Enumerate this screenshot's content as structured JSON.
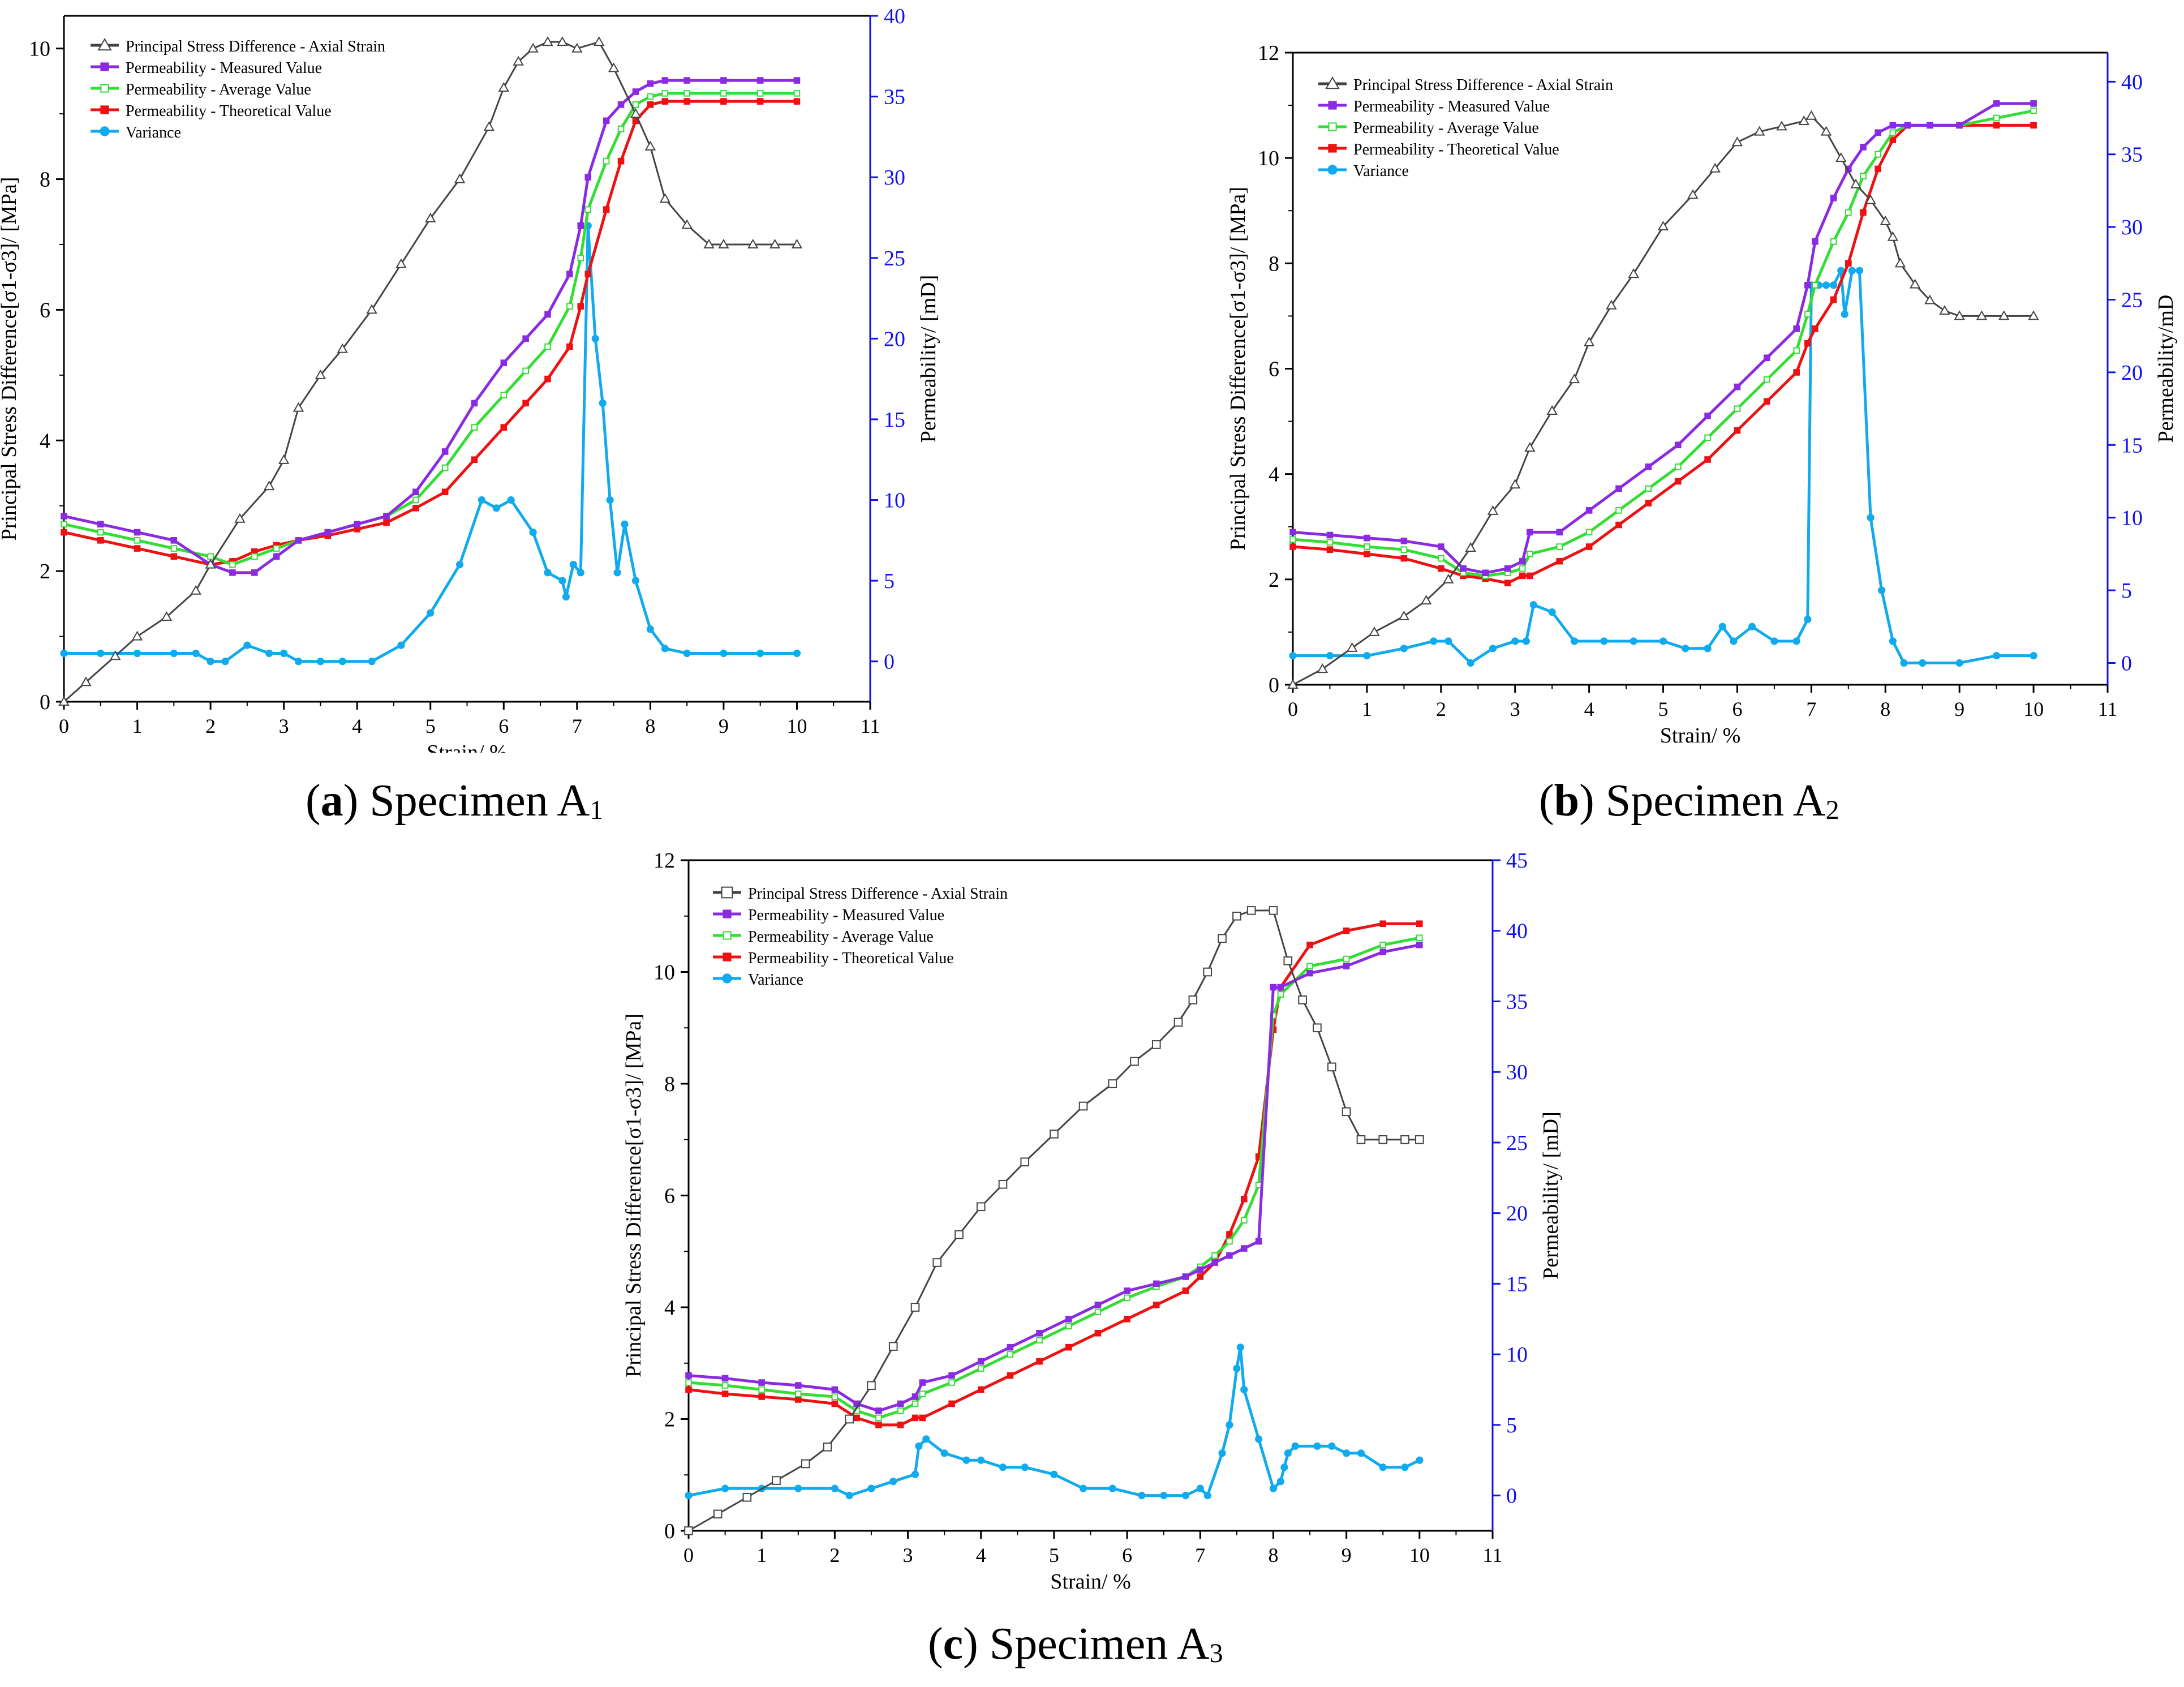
{
  "colors": {
    "stress": "#444444",
    "measured": "#8A2BE2",
    "average": "#33DD33",
    "theoretical": "#EE1111",
    "variance": "#11AAEE",
    "right_axis": "#1111EE"
  },
  "chart_data": [
    {
      "type": "line",
      "panel": "a",
      "caption": {
        "letter": "a",
        "text": "Specimen A",
        "sub": "1"
      },
      "xlabel": "Strain/ %",
      "ylabel": "Principal Stress Difference[σ1-σ3]/ [MPa]",
      "y2label": "Permeability/ [mD]",
      "xlim": [
        0,
        11
      ],
      "xticks": [
        0,
        1,
        2,
        3,
        4,
        5,
        6,
        7,
        8,
        9,
        10,
        11
      ],
      "ylim": [
        0,
        10.5
      ],
      "yticks": [
        0,
        2,
        4,
        6,
        8,
        10
      ],
      "y2lim": [
        -2.5,
        40
      ],
      "y2ticks": [
        0,
        5,
        10,
        15,
        20,
        25,
        30,
        35,
        40
      ],
      "legend": [
        "Principal Stress Difference - Axial Strain",
        "Permeability - Measured Value",
        "Permeability - Average Value",
        "Permeability - Theoretical Value",
        "Variance"
      ],
      "marker": "triangle",
      "stress": {
        "x": [
          0,
          0.3,
          0.7,
          1.0,
          1.4,
          1.8,
          2.0,
          2.4,
          2.8,
          3.0,
          3.2,
          3.5,
          3.8,
          4.2,
          4.6,
          5.0,
          5.4,
          5.8,
          6.0,
          6.2,
          6.4,
          6.6,
          6.8,
          7.0,
          7.3,
          7.5,
          7.8,
          8.0,
          8.2,
          8.5,
          8.8,
          9.0,
          9.4,
          9.7,
          10.0
        ],
        "y": [
          0,
          0.3,
          0.7,
          1.0,
          1.3,
          1.7,
          2.1,
          2.8,
          3.3,
          3.7,
          4.5,
          5.0,
          5.4,
          6.0,
          6.7,
          7.4,
          8.0,
          8.8,
          9.4,
          9.8,
          10.0,
          10.1,
          10.1,
          10.0,
          10.1,
          9.7,
          9.0,
          8.5,
          7.7,
          7.3,
          7.0,
          7.0,
          7.0,
          7.0,
          7.0
        ]
      },
      "measured": {
        "x": [
          0,
          0.5,
          1.0,
          1.5,
          2.0,
          2.3,
          2.6,
          2.9,
          3.2,
          3.6,
          4.0,
          4.4,
          4.8,
          5.2,
          5.6,
          6.0,
          6.3,
          6.6,
          6.9,
          7.05,
          7.15,
          7.4,
          7.6,
          7.8,
          8.0,
          8.2,
          8.5,
          9.0,
          9.5,
          10.0
        ],
        "y": [
          9.0,
          8.5,
          8.0,
          7.5,
          6.0,
          5.5,
          5.5,
          6.5,
          7.5,
          8.0,
          8.5,
          9.0,
          10.5,
          13.0,
          16.0,
          18.5,
          20.0,
          21.5,
          24.0,
          27.0,
          30.0,
          33.5,
          34.5,
          35.3,
          35.8,
          36.0,
          36.0,
          36.0,
          36.0,
          36.0
        ]
      },
      "average": {
        "x": [
          0,
          0.5,
          1.0,
          1.5,
          2.0,
          2.3,
          2.6,
          2.9,
          3.2,
          3.6,
          4.0,
          4.4,
          4.8,
          5.2,
          5.6,
          6.0,
          6.3,
          6.6,
          6.9,
          7.05,
          7.15,
          7.4,
          7.6,
          7.8,
          8.0,
          8.2,
          8.5,
          9.0,
          9.5,
          10.0
        ],
        "y": [
          8.5,
          8.0,
          7.5,
          7.0,
          6.5,
          6.0,
          6.5,
          7.0,
          7.5,
          8.0,
          8.5,
          9.0,
          10.0,
          12.0,
          14.5,
          16.5,
          18.0,
          19.5,
          22.0,
          25.0,
          28.0,
          31.0,
          33.0,
          34.5,
          35.0,
          35.2,
          35.2,
          35.2,
          35.2,
          35.2
        ]
      },
      "theoretical": {
        "x": [
          0,
          0.5,
          1.0,
          1.5,
          2.0,
          2.3,
          2.6,
          2.9,
          3.2,
          3.6,
          4.0,
          4.4,
          4.8,
          5.2,
          5.6,
          6.0,
          6.3,
          6.6,
          6.9,
          7.05,
          7.15,
          7.4,
          7.6,
          7.8,
          8.0,
          8.2,
          8.5,
          9.0,
          9.5,
          10.0
        ],
        "y": [
          8.0,
          7.5,
          7.0,
          6.5,
          6.0,
          6.2,
          6.8,
          7.2,
          7.5,
          7.8,
          8.2,
          8.6,
          9.5,
          10.5,
          12.5,
          14.5,
          16.0,
          17.5,
          19.5,
          22.0,
          24.0,
          28.0,
          31.0,
          33.5,
          34.5,
          34.7,
          34.7,
          34.7,
          34.7,
          34.7
        ]
      },
      "variance": {
        "x": [
          0,
          0.5,
          1.0,
          1.5,
          1.8,
          2.0,
          2.2,
          2.5,
          2.8,
          3.0,
          3.2,
          3.5,
          3.8,
          4.2,
          4.6,
          5.0,
          5.4,
          5.7,
          5.9,
          6.1,
          6.4,
          6.6,
          6.8,
          6.85,
          6.95,
          7.05,
          7.15,
          7.25,
          7.35,
          7.45,
          7.55,
          7.65,
          7.8,
          8.0,
          8.2,
          8.5,
          9.0,
          9.5,
          10.0
        ],
        "y": [
          0.5,
          0.5,
          0.5,
          0.5,
          0.5,
          0,
          0,
          1,
          0.5,
          0.5,
          0,
          0,
          0,
          0,
          1,
          3,
          6,
          10,
          9.5,
          10,
          8,
          5.5,
          5,
          4,
          6,
          5.5,
          27,
          20,
          16,
          10,
          5.5,
          8.5,
          5,
          2,
          0.8,
          0.5,
          0.5,
          0.5,
          0.5
        ]
      }
    },
    {
      "type": "line",
      "panel": "b",
      "caption": {
        "letter": "b",
        "text": "Specimen A",
        "sub": "2"
      },
      "xlabel": "Strain/ %",
      "ylabel": "Principal Stress Difference[σ1-σ3]/ [MPa]",
      "y2label": "Permeability/mD",
      "xlim": [
        0,
        11
      ],
      "xticks": [
        0,
        1,
        2,
        3,
        4,
        5,
        6,
        7,
        8,
        9,
        10,
        11
      ],
      "ylim": [
        0,
        12
      ],
      "yticks": [
        0,
        2,
        4,
        6,
        8,
        10,
        12
      ],
      "y2lim": [
        -1.5,
        42
      ],
      "y2ticks": [
        0,
        5,
        10,
        15,
        20,
        25,
        30,
        35,
        40
      ],
      "legend": [
        "Principal Stress Difference - Axial Strain",
        "Permeability - Measured Value",
        "Permeability - Average Value",
        "Permeability - Theoretical Value",
        "Variance"
      ],
      "marker": "triangle",
      "stress": {
        "x": [
          0,
          0.4,
          0.8,
          1.1,
          1.5,
          1.8,
          2.1,
          2.4,
          2.7,
          3.0,
          3.2,
          3.5,
          3.8,
          4.0,
          4.3,
          4.6,
          5.0,
          5.4,
          5.7,
          6.0,
          6.3,
          6.6,
          6.9,
          7.0,
          7.2,
          7.4,
          7.6,
          7.8,
          8.0,
          8.1,
          8.2,
          8.4,
          8.6,
          8.8,
          9.0,
          9.3,
          9.6,
          10.0
        ],
        "y": [
          0,
          0.3,
          0.7,
          1.0,
          1.3,
          1.6,
          2.0,
          2.6,
          3.3,
          3.8,
          4.5,
          5.2,
          5.8,
          6.5,
          7.2,
          7.8,
          8.7,
          9.3,
          9.8,
          10.3,
          10.5,
          10.6,
          10.7,
          10.8,
          10.5,
          10.0,
          9.5,
          9.2,
          8.8,
          8.5,
          8.0,
          7.6,
          7.3,
          7.1,
          7.0,
          7.0,
          7.0,
          7.0
        ]
      },
      "measured": {
        "x": [
          0,
          0.5,
          1.0,
          1.5,
          2.0,
          2.3,
          2.6,
          2.9,
          3.1,
          3.2,
          3.6,
          4.0,
          4.4,
          4.8,
          5.2,
          5.6,
          6.0,
          6.4,
          6.8,
          6.95,
          7.05,
          7.3,
          7.5,
          7.7,
          7.9,
          8.1,
          8.3,
          8.6,
          9.0,
          9.5,
          10.0
        ],
        "y": [
          9.0,
          8.8,
          8.6,
          8.4,
          8.0,
          6.5,
          6.2,
          6.5,
          7.0,
          9.0,
          9.0,
          10.5,
          12.0,
          13.5,
          15.0,
          17.0,
          19.0,
          21.0,
          23.0,
          26.0,
          29.0,
          32.0,
          34.0,
          35.5,
          36.5,
          37.0,
          37.0,
          37.0,
          37.0,
          38.5,
          38.5
        ]
      },
      "average": {
        "x": [
          0,
          0.5,
          1.0,
          1.5,
          2.0,
          2.3,
          2.6,
          2.9,
          3.1,
          3.2,
          3.6,
          4.0,
          4.4,
          4.8,
          5.2,
          5.6,
          6.0,
          6.4,
          6.8,
          6.95,
          7.05,
          7.3,
          7.5,
          7.7,
          7.9,
          8.1,
          8.3,
          8.6,
          9.0,
          9.5,
          10.0
        ],
        "y": [
          8.5,
          8.3,
          8.0,
          7.8,
          7.2,
          6.2,
          6.0,
          6.2,
          6.5,
          7.5,
          8.0,
          9.0,
          10.5,
          12.0,
          13.5,
          15.5,
          17.5,
          19.5,
          21.5,
          24.0,
          26.0,
          29.0,
          31.0,
          33.5,
          35.0,
          36.5,
          37.0,
          37.0,
          37.0,
          37.5,
          38.0
        ]
      },
      "theoretical": {
        "x": [
          0,
          0.5,
          1.0,
          1.5,
          2.0,
          2.3,
          2.6,
          2.9,
          3.1,
          3.2,
          3.6,
          4.0,
          4.4,
          4.8,
          5.2,
          5.6,
          6.0,
          6.4,
          6.8,
          6.95,
          7.05,
          7.3,
          7.5,
          7.7,
          7.9,
          8.1,
          8.3,
          8.6,
          9.0,
          9.5,
          10.0
        ],
        "y": [
          8.0,
          7.8,
          7.5,
          7.2,
          6.5,
          6.0,
          5.8,
          5.5,
          6.0,
          6.0,
          7.0,
          8.0,
          9.5,
          11.0,
          12.5,
          14.0,
          16.0,
          18.0,
          20.0,
          22.0,
          23.0,
          25.0,
          27.5,
          31.0,
          34.0,
          36.0,
          37.0,
          37.0,
          37.0,
          37.0,
          37.0
        ]
      },
      "variance": {
        "x": [
          0,
          0.5,
          1.0,
          1.5,
          1.9,
          2.1,
          2.4,
          2.7,
          3.0,
          3.15,
          3.25,
          3.5,
          3.8,
          4.2,
          4.6,
          5.0,
          5.3,
          5.6,
          5.8,
          5.95,
          6.2,
          6.5,
          6.8,
          6.95,
          7.0,
          7.1,
          7.2,
          7.3,
          7.4,
          7.45,
          7.55,
          7.65,
          7.8,
          7.95,
          8.1,
          8.25,
          8.5,
          9.0,
          9.5,
          10.0
        ],
        "y": [
          0.5,
          0.5,
          0.5,
          1,
          1.5,
          1.5,
          0,
          1,
          1.5,
          1.5,
          4,
          3.5,
          1.5,
          1.5,
          1.5,
          1.5,
          1,
          1,
          2.5,
          1.5,
          2.5,
          1.5,
          1.5,
          3,
          26,
          26,
          26,
          26,
          27,
          24,
          27,
          27,
          10,
          5,
          1.5,
          0,
          0,
          0,
          0.5,
          0.5
        ]
      }
    },
    {
      "type": "line",
      "panel": "c",
      "caption": {
        "letter": "c",
        "text": "Specimen A",
        "sub": "3"
      },
      "xlabel": "Strain/ %",
      "ylabel": "Principal Stress Difference[σ1-σ3]/ [MPa]",
      "y2label": "Permeability/ [mD]",
      "xlim": [
        0,
        11
      ],
      "xticks": [
        0,
        1,
        2,
        3,
        4,
        5,
        6,
        7,
        8,
        9,
        10,
        11
      ],
      "ylim": [
        0,
        12
      ],
      "yticks": [
        0,
        2,
        4,
        6,
        8,
        10,
        12
      ],
      "y2lim": [
        -2.5,
        45
      ],
      "y2ticks": [
        0,
        5,
        10,
        15,
        20,
        25,
        30,
        35,
        40,
        45
      ],
      "legend": [
        "Principal Stress Difference - Axial Strain",
        "Permeability - Measured Value",
        "Permeability - Average Value",
        "Permeability - Theoretical Value",
        "Variance"
      ],
      "marker": "square",
      "stress": {
        "x": [
          0,
          0.4,
          0.8,
          1.2,
          1.6,
          1.9,
          2.2,
          2.5,
          2.8,
          3.1,
          3.4,
          3.7,
          4.0,
          4.3,
          4.6,
          5.0,
          5.4,
          5.8,
          6.1,
          6.4,
          6.7,
          6.9,
          7.1,
          7.3,
          7.5,
          7.7,
          8.0,
          8.2,
          8.4,
          8.6,
          8.8,
          9.0,
          9.2,
          9.5,
          9.8,
          10.0
        ],
        "y": [
          0,
          0.3,
          0.6,
          0.9,
          1.2,
          1.5,
          2.0,
          2.6,
          3.3,
          4.0,
          4.8,
          5.3,
          5.8,
          6.2,
          6.6,
          7.1,
          7.6,
          8.0,
          8.4,
          8.7,
          9.1,
          9.5,
          10.0,
          10.6,
          11.0,
          11.1,
          11.1,
          10.2,
          9.5,
          9.0,
          8.3,
          7.5,
          7.0,
          7.0,
          7.0,
          7.0
        ]
      },
      "measured": {
        "x": [
          0,
          0.5,
          1.0,
          1.5,
          2.0,
          2.3,
          2.6,
          2.9,
          3.1,
          3.2,
          3.6,
          4.0,
          4.4,
          4.8,
          5.2,
          5.6,
          6.0,
          6.4,
          6.8,
          7.0,
          7.2,
          7.4,
          7.6,
          7.8,
          8.0,
          8.1,
          8.5,
          9.0,
          9.5,
          10.0
        ],
        "y": [
          8.5,
          8.3,
          8.0,
          7.8,
          7.5,
          6.5,
          6.0,
          6.5,
          7.0,
          8.0,
          8.5,
          9.5,
          10.5,
          11.5,
          12.5,
          13.5,
          14.5,
          15.0,
          15.5,
          16.0,
          16.5,
          17.0,
          17.5,
          18.0,
          36.0,
          36.0,
          37.0,
          37.5,
          38.5,
          39.0
        ]
      },
      "average": {
        "x": [
          0,
          0.5,
          1.0,
          1.5,
          2.0,
          2.3,
          2.6,
          2.9,
          3.1,
          3.2,
          3.6,
          4.0,
          4.4,
          4.8,
          5.2,
          5.6,
          6.0,
          6.4,
          6.8,
          7.0,
          7.2,
          7.4,
          7.6,
          7.8,
          8.0,
          8.1,
          8.5,
          9.0,
          9.5,
          10.0
        ],
        "y": [
          8.0,
          7.8,
          7.5,
          7.2,
          7.0,
          6.0,
          5.5,
          6.0,
          6.5,
          7.2,
          8.0,
          9.0,
          10.0,
          11.0,
          12.0,
          13.0,
          14.0,
          14.8,
          15.5,
          16.2,
          17.0,
          18.0,
          19.5,
          22.0,
          34.0,
          35.5,
          37.5,
          38.0,
          39.0,
          39.5
        ]
      },
      "theoretical": {
        "x": [
          0,
          0.5,
          1.0,
          1.5,
          2.0,
          2.3,
          2.6,
          2.9,
          3.1,
          3.2,
          3.6,
          4.0,
          4.4,
          4.8,
          5.2,
          5.6,
          6.0,
          6.4,
          6.8,
          7.0,
          7.2,
          7.4,
          7.6,
          7.8,
          8.0,
          8.1,
          8.5,
          9.0,
          9.5,
          10.0
        ],
        "y": [
          7.5,
          7.2,
          7.0,
          6.8,
          6.5,
          5.5,
          5.0,
          5.0,
          5.5,
          5.5,
          6.5,
          7.5,
          8.5,
          9.5,
          10.5,
          11.5,
          12.5,
          13.5,
          14.5,
          15.5,
          16.5,
          18.5,
          21.0,
          24.0,
          33.0,
          36.0,
          39.0,
          40.0,
          40.5,
          40.5
        ]
      },
      "variance": {
        "x": [
          0,
          0.5,
          1.0,
          1.5,
          2.0,
          2.2,
          2.5,
          2.8,
          3.1,
          3.15,
          3.25,
          3.5,
          3.8,
          4.0,
          4.3,
          4.6,
          5.0,
          5.4,
          5.8,
          6.2,
          6.5,
          6.8,
          7.0,
          7.1,
          7.3,
          7.4,
          7.5,
          7.55,
          7.6,
          7.8,
          8.0,
          8.1,
          8.15,
          8.2,
          8.3,
          8.6,
          8.8,
          9.0,
          9.2,
          9.5,
          9.8,
          10.0
        ],
        "y": [
          0,
          0.5,
          0.5,
          0.5,
          0.5,
          0,
          0.5,
          1,
          1.5,
          3.5,
          4,
          3,
          2.5,
          2.5,
          2,
          2,
          1.5,
          0.5,
          0.5,
          0,
          0,
          0,
          0.5,
          0,
          3,
          5,
          9,
          10.5,
          7.5,
          4,
          0.5,
          1,
          2,
          3,
          3.5,
          3.5,
          3.5,
          3,
          3,
          2,
          2,
          2.5
        ]
      }
    }
  ]
}
